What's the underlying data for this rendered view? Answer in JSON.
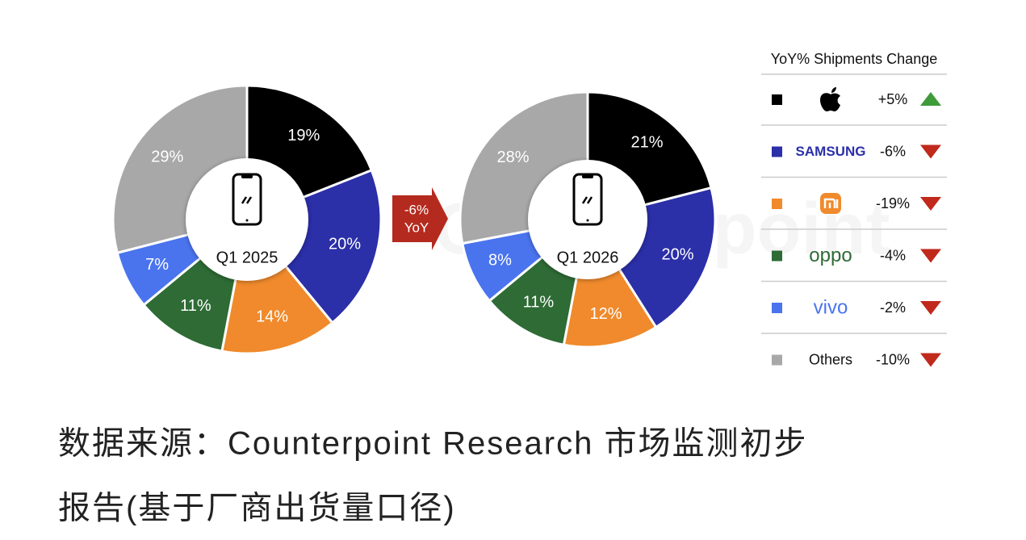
{
  "chart_data": [
    {
      "type": "pie",
      "center_label": "Q1 2025",
      "values": [
        19,
        20,
        14,
        11,
        7,
        29
      ],
      "value_labels": [
        "19%",
        "20%",
        "14%",
        "11%",
        "7%",
        "29%"
      ],
      "colors": [
        "#000000",
        "#2b2fa8",
        "#f08a2c",
        "#2e6b35",
        "#4a74ee",
        "#a8a8a8"
      ]
    },
    {
      "type": "pie",
      "center_label": "Q1 2026",
      "values": [
        21,
        20,
        12,
        11,
        8,
        28
      ],
      "value_labels": [
        "21%",
        "20%",
        "12%",
        "11%",
        "8%",
        "28%"
      ],
      "colors": [
        "#000000",
        "#2b2fa8",
        "#f08a2c",
        "#2e6b35",
        "#4a74ee",
        "#a8a8a8"
      ]
    }
  ],
  "yoy_arrow": [
    "-6%",
    "YoY"
  ],
  "watermark": "Counterpoint",
  "legend_table": {
    "title": "YoY% Shipments Change",
    "rows": [
      {
        "logo": "apple",
        "color": "#000000",
        "change": "+5%",
        "direction": "up"
      },
      {
        "brand": "SAMSUNG",
        "color": "#2b2fa8",
        "change": "-6%",
        "direction": "down"
      },
      {
        "logo": "xiaomi",
        "color": "#f08a2c",
        "change": "-19%",
        "direction": "down"
      },
      {
        "brand": "oppo",
        "color": "#2e6b35",
        "change": "-4%",
        "direction": "down"
      },
      {
        "brand": "vivo",
        "color": "#4a74ee",
        "change": "-2%",
        "direction": "down"
      },
      {
        "brand": "Others",
        "color": "#a8a8a8",
        "change": "-10%",
        "direction": "down"
      }
    ]
  },
  "caption": [
    "数据来源：Counterpoint Research 市场监测初步",
    "报告(基于厂商出货量口径)"
  ]
}
